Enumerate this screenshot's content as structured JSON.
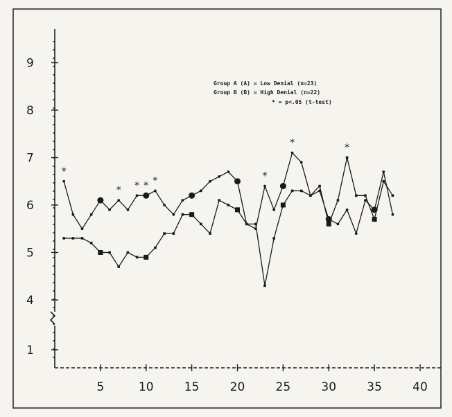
{
  "chart_data": {
    "type": "line",
    "title": "",
    "xlabel": "",
    "ylabel": "",
    "xlim": [
      0,
      40
    ],
    "ylim": [
      1,
      9.5
    ],
    "axis_break": "between 1 and 4",
    "x_ticks": [
      "5",
      "10",
      "15",
      "20",
      "25",
      "30",
      "35",
      "40"
    ],
    "y_ticks": [
      "1",
      "4",
      "5",
      "6",
      "7",
      "8",
      "9"
    ],
    "grid": false,
    "legend_position": "top-right",
    "legend": [
      {
        "key": "A",
        "text": "Group A (A) = Low Denial (n=23)"
      },
      {
        "key": "B",
        "text": "Group B (B) = High Denial (n=22)"
      },
      {
        "key": "sig",
        "text": "* = p<.05 (t-test)"
      }
    ],
    "series": [
      {
        "id": "A",
        "marker": "square",
        "x": [
          1,
          2,
          3,
          4,
          5,
          6,
          7,
          8,
          9,
          10,
          11,
          12,
          13,
          14,
          15,
          16,
          17,
          18,
          19,
          20,
          21,
          22,
          23,
          24,
          25,
          26,
          27,
          28,
          29,
          30,
          31,
          32,
          33,
          34,
          35,
          36,
          37
        ],
        "y": [
          5.3,
          5.3,
          5.3,
          5.2,
          5.0,
          5.0,
          4.7,
          5.0,
          4.9,
          4.9,
          5.1,
          5.4,
          5.4,
          5.8,
          5.8,
          5.6,
          5.4,
          6.1,
          6.0,
          5.9,
          5.6,
          5.6,
          4.3,
          5.3,
          6.0,
          6.3,
          6.3,
          6.2,
          6.4,
          5.6,
          6.1,
          7.0,
          6.2,
          6.2,
          5.7,
          6.5,
          6.2
        ]
      },
      {
        "id": "B",
        "marker": "circle",
        "x": [
          1,
          2,
          3,
          4,
          5,
          6,
          7,
          8,
          9,
          10,
          11,
          12,
          13,
          14,
          15,
          16,
          17,
          18,
          19,
          20,
          21,
          22,
          23,
          24,
          25,
          26,
          27,
          28,
          29,
          30,
          31,
          32,
          33,
          34,
          35,
          36,
          37
        ],
        "y": [
          6.5,
          5.8,
          5.5,
          5.8,
          6.1,
          5.9,
          6.1,
          5.9,
          6.2,
          6.2,
          6.3,
          6.0,
          5.8,
          6.1,
          6.2,
          6.3,
          6.5,
          6.6,
          6.7,
          6.5,
          5.6,
          5.5,
          6.4,
          5.9,
          6.4,
          7.1,
          6.9,
          6.2,
          6.3,
          5.7,
          5.6,
          5.9,
          5.4,
          6.1,
          5.9,
          6.7,
          5.8
        ]
      }
    ],
    "significance_markers": [
      1,
      7,
      9,
      10,
      11,
      23,
      26,
      32
    ]
  }
}
